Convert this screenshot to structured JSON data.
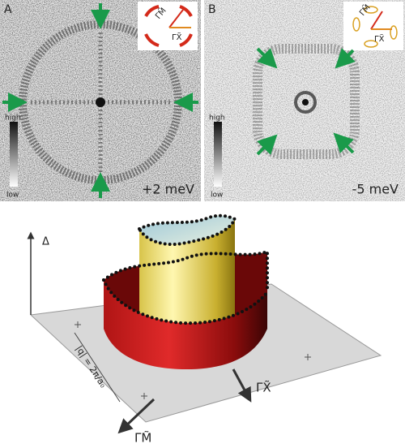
{
  "panels": [
    {
      "label": "A",
      "scale_high": "high",
      "scale_low": "low",
      "energy": "+2 meV",
      "inset_labels": [
        "ΓM̃",
        "ΓX̃"
      ]
    },
    {
      "label": "B",
      "scale_high": "high",
      "scale_low": "low",
      "energy": "-5 meV",
      "inset_labels": [
        "ΓM̃",
        "ΓX̃"
      ]
    }
  ],
  "schematic": {
    "axis_label": "Δ",
    "x_axis": "ΓX̃",
    "m_axis": "ΓM̃",
    "q_label": "|q| = 2π/a₀"
  }
}
